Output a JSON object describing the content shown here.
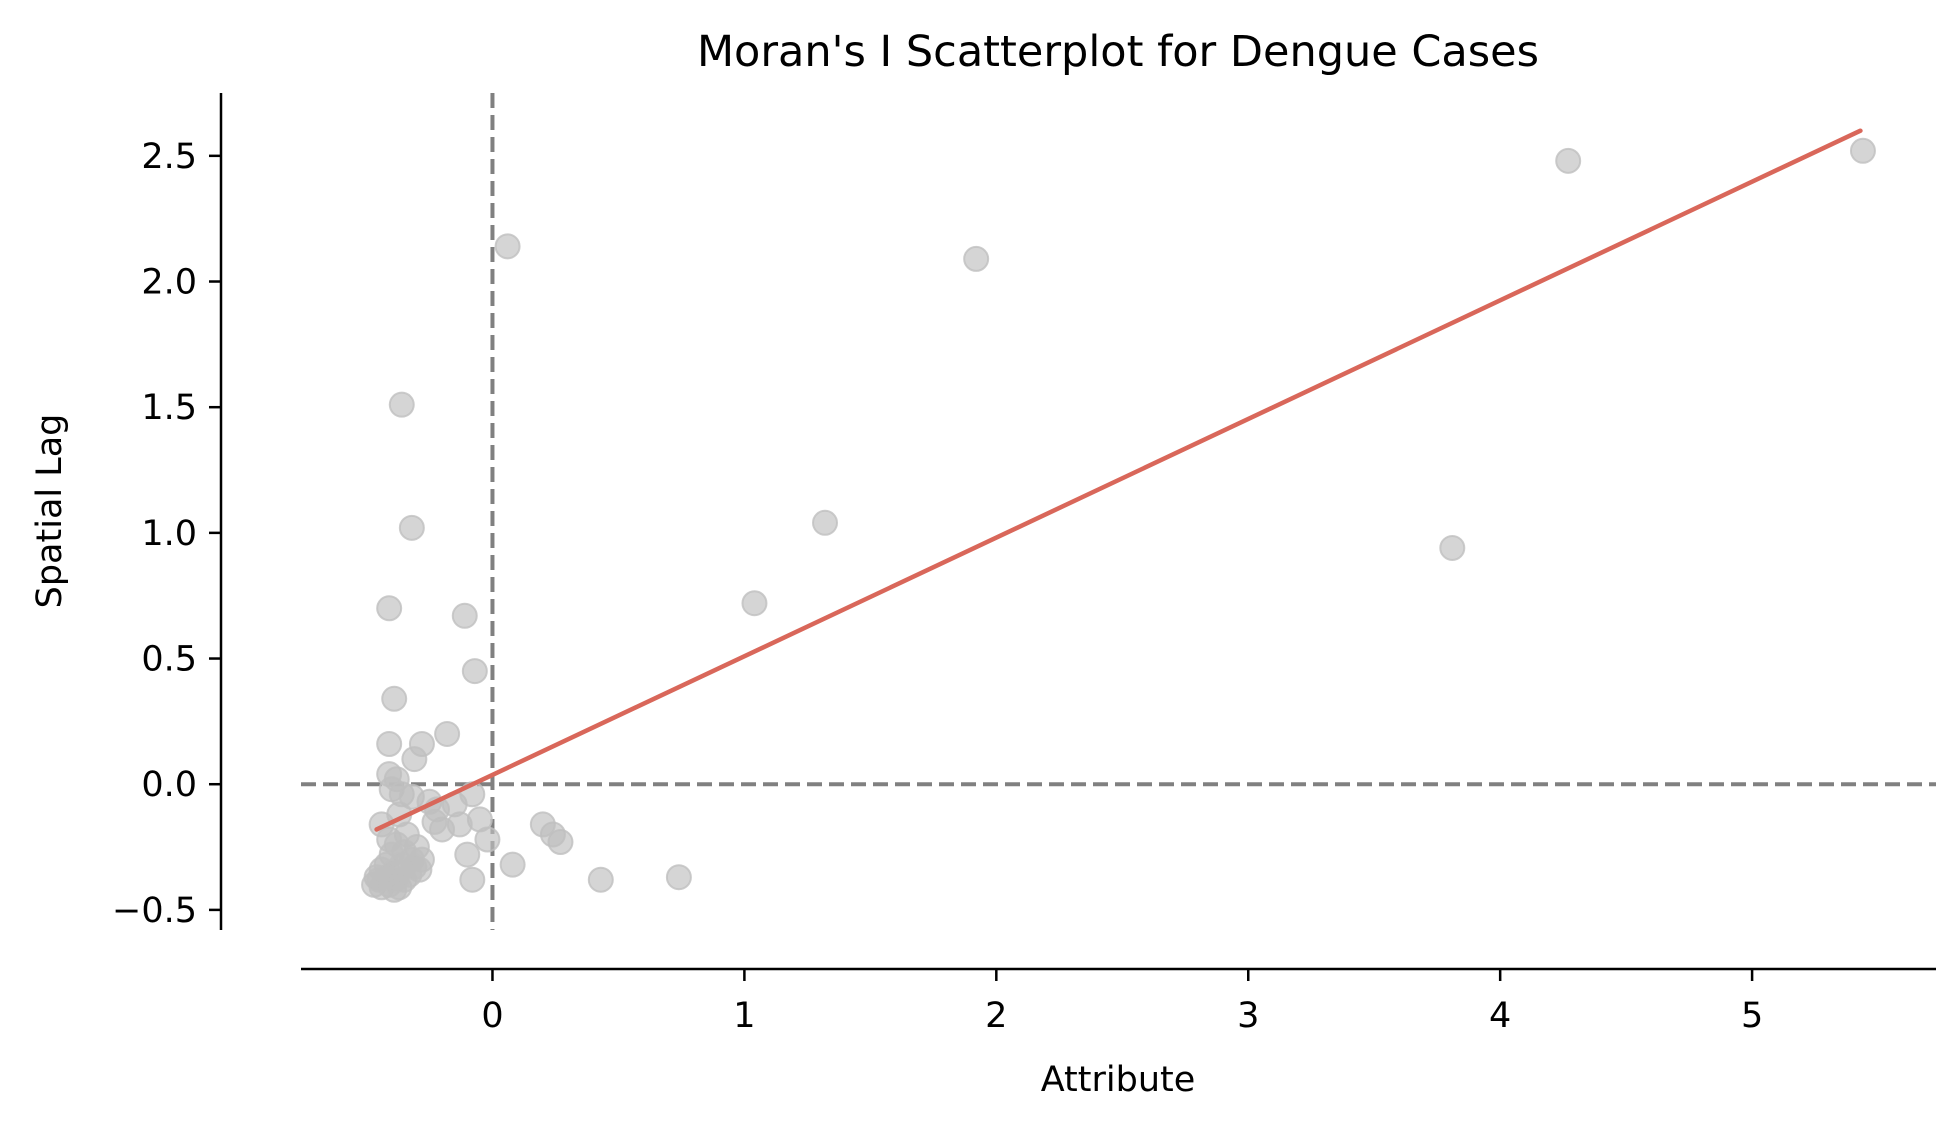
{
  "chart_data": {
    "type": "scatter",
    "title": "Moran's I Scatterplot for Dengue Cases",
    "xlabel": "Attribute",
    "ylabel": "Spatial Lag",
    "xlim": [
      -0.76,
      5.73
    ],
    "ylim": [
      -0.58,
      2.75
    ],
    "x_ticks": [
      0,
      1,
      2,
      3,
      4,
      5
    ],
    "y_ticks": [
      -0.5,
      0.0,
      0.5,
      1.0,
      1.5,
      2.0,
      2.5
    ],
    "x_tick_labels": [
      "0",
      "1",
      "2",
      "3",
      "4",
      "5"
    ],
    "y_tick_labels": [
      "−0.5",
      "0.0",
      "0.5",
      "1.0",
      "1.5",
      "2.0",
      "2.5"
    ],
    "grid": false,
    "reference_lines": {
      "x": 0,
      "y": 0,
      "style": "dashed",
      "color": "#808080"
    },
    "fit_line": {
      "x": [
        -0.46,
        5.43
      ],
      "y": [
        -0.18,
        2.6
      ],
      "color": "#d9675a"
    },
    "point_color": "#bfbfbf",
    "points": [
      {
        "x": 5.44,
        "y": 2.52
      },
      {
        "x": 4.27,
        "y": 2.48
      },
      {
        "x": 3.81,
        "y": 0.94
      },
      {
        "x": 1.92,
        "y": 2.09
      },
      {
        "x": 1.32,
        "y": 1.04
      },
      {
        "x": 1.04,
        "y": 0.72
      },
      {
        "x": 0.74,
        "y": -0.37
      },
      {
        "x": 0.43,
        "y": -0.38
      },
      {
        "x": 0.06,
        "y": 2.14
      },
      {
        "x": 0.08,
        "y": -0.32
      },
      {
        "x": 0.27,
        "y": -0.23
      },
      {
        "x": 0.24,
        "y": -0.2
      },
      {
        "x": 0.2,
        "y": -0.16
      },
      {
        "x": -0.36,
        "y": 1.51
      },
      {
        "x": -0.32,
        "y": 1.02
      },
      {
        "x": -0.41,
        "y": 0.7
      },
      {
        "x": -0.11,
        "y": 0.67
      },
      {
        "x": -0.07,
        "y": 0.45
      },
      {
        "x": -0.39,
        "y": 0.34
      },
      {
        "x": -0.18,
        "y": 0.2
      },
      {
        "x": -0.28,
        "y": 0.16
      },
      {
        "x": -0.41,
        "y": 0.16
      },
      {
        "x": -0.31,
        "y": 0.1
      },
      {
        "x": -0.41,
        "y": 0.04
      },
      {
        "x": -0.38,
        "y": 0.02
      },
      {
        "x": -0.4,
        "y": -0.02
      },
      {
        "x": -0.36,
        "y": -0.04
      },
      {
        "x": -0.32,
        "y": -0.05
      },
      {
        "x": -0.25,
        "y": -0.07
      },
      {
        "x": -0.22,
        "y": -0.1
      },
      {
        "x": -0.15,
        "y": -0.08
      },
      {
        "x": -0.08,
        "y": -0.04
      },
      {
        "x": -0.05,
        "y": -0.14
      },
      {
        "x": -0.13,
        "y": -0.16
      },
      {
        "x": -0.2,
        "y": -0.18
      },
      {
        "x": -0.23,
        "y": -0.15
      },
      {
        "x": -0.02,
        "y": -0.22
      },
      {
        "x": -0.1,
        "y": -0.28
      },
      {
        "x": -0.08,
        "y": -0.38
      },
      {
        "x": -0.44,
        "y": -0.16
      },
      {
        "x": -0.41,
        "y": -0.22
      },
      {
        "x": -0.37,
        "y": -0.12
      },
      {
        "x": -0.34,
        "y": -0.2
      },
      {
        "x": -0.3,
        "y": -0.25
      },
      {
        "x": -0.28,
        "y": -0.3
      },
      {
        "x": -0.29,
        "y": -0.34
      },
      {
        "x": -0.32,
        "y": -0.3
      },
      {
        "x": -0.35,
        "y": -0.27
      },
      {
        "x": -0.38,
        "y": -0.24
      },
      {
        "x": -0.4,
        "y": -0.28
      },
      {
        "x": -0.42,
        "y": -0.32
      },
      {
        "x": -0.44,
        "y": -0.34
      },
      {
        "x": -0.46,
        "y": -0.37
      },
      {
        "x": -0.47,
        "y": -0.4
      },
      {
        "x": -0.44,
        "y": -0.41
      },
      {
        "x": -0.41,
        "y": -0.4
      },
      {
        "x": -0.39,
        "y": -0.42
      },
      {
        "x": -0.37,
        "y": -0.41
      },
      {
        "x": -0.35,
        "y": -0.38
      },
      {
        "x": -0.33,
        "y": -0.36
      },
      {
        "x": -0.31,
        "y": -0.33
      },
      {
        "x": -0.36,
        "y": -0.32
      },
      {
        "x": -0.39,
        "y": -0.35
      },
      {
        "x": -0.42,
        "y": -0.37
      },
      {
        "x": -0.45,
        "y": -0.38
      },
      {
        "x": -0.38,
        "y": -0.38
      }
    ]
  }
}
